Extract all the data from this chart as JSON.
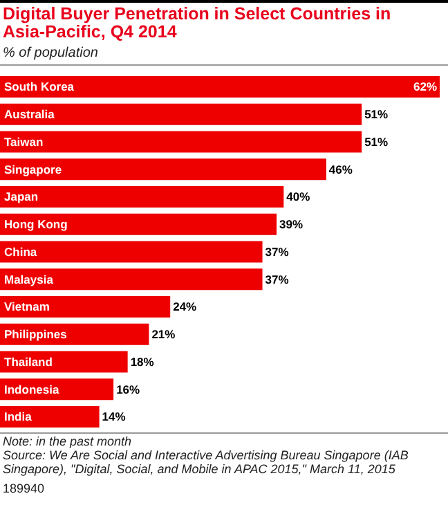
{
  "chart_data": {
    "type": "bar",
    "orientation": "horizontal",
    "title": "Digital Buyer Penetration in Select Countries in Asia-Pacific, Q4 2014",
    "subtitle": "% of population",
    "categories": [
      "South Korea",
      "Australia",
      "Taiwan",
      "Singapore",
      "Japan",
      "Hong Kong",
      "China",
      "Malaysia",
      "Vietnam",
      "Philippines",
      "Thailand",
      "Indonesia",
      "India"
    ],
    "values": [
      62,
      51,
      51,
      46,
      40,
      39,
      37,
      37,
      24,
      21,
      18,
      16,
      14
    ],
    "value_labels": [
      "62%",
      "51%",
      "51%",
      "46%",
      "40%",
      "39%",
      "37%",
      "37%",
      "24%",
      "21%",
      "18%",
      "16%",
      "14%"
    ],
    "color": "#ee0000",
    "annotations": [
      "Note: in the past month",
      "Source: We Are Social and Interactive Advertising Bureau Singapore (IAB Singapore), \"Digital, Social, and Mobile in APAC 2015,\" March 11, 2015",
      "189940"
    ]
  }
}
